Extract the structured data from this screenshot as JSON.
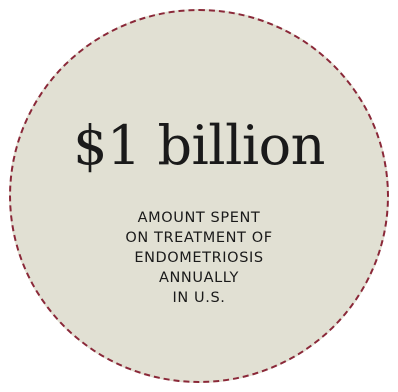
{
  "stat": {
    "value": "$1 billion",
    "caption_lines": [
      "AMOUNT SPENT",
      "ON TREATMENT OF",
      "ENDOMETRIOSIS",
      "ANNUALLY",
      "IN U.S."
    ]
  },
  "colors": {
    "circle_fill": "#e1e0d3",
    "circle_border": "#8a2838",
    "text": "#1a1a1a"
  }
}
